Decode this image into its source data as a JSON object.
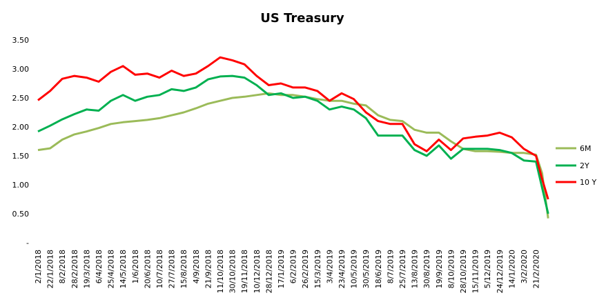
{
  "chart_data": {
    "type": "line",
    "title": "US Treasury",
    "xlabel": "",
    "ylabel": "",
    "ylim": [
      0,
      3.5
    ],
    "yticks": [
      "-",
      "0.50",
      "1.00",
      "1.50",
      "2.00",
      "2.50",
      "3.00",
      "3.50"
    ],
    "ytick_values": [
      0,
      0.5,
      1,
      1.5,
      2,
      2.5,
      3,
      3.5
    ],
    "grid": false,
    "legend_position": "right",
    "x_labels": [
      "2/1/2018",
      "22/1/2018",
      "8/2/2018",
      "28/2/2018",
      "19/3/2018",
      "6/4/2018",
      "25/4/2018",
      "14/5/2018",
      "1/6/2018",
      "20/6/2018",
      "10/7/2018",
      "27/7/2018",
      "15/8/2018",
      "4/9/2018",
      "21/9/2018",
      "11/10/2018",
      "30/10/2018",
      "19/11/2018",
      "10/12/2018",
      "28/12/2018",
      "17/1/2019",
      "6/2/2019",
      "26/2/2019",
      "15/3/2019",
      "3/4/2019",
      "23/4/2019",
      "10/5/2019",
      "30/5/2019",
      "18/6/2019",
      "8/7/2019",
      "25/7/2019",
      "13/8/2019",
      "30/8/2019",
      "19/9/2019",
      "8/10/2019",
      "28/10/2019",
      "15/11/2019",
      "5/12/2019",
      "24/12/2019",
      "14/1/2020",
      "3/2/2020",
      "21/2/2020"
    ],
    "x_index": [
      0,
      1,
      2,
      3,
      4,
      5,
      6,
      7,
      8,
      9,
      10,
      11,
      12,
      13,
      14,
      15,
      16,
      17,
      18,
      19,
      20,
      21,
      22,
      23,
      24,
      25,
      26,
      27,
      28,
      29,
      30,
      31,
      32,
      33,
      34,
      35,
      36,
      37,
      38,
      39,
      40,
      41,
      41.5,
      42
    ],
    "series": [
      {
        "name": "6M",
        "color": "#9BBB59",
        "values": [
          1.6,
          1.63,
          1.78,
          1.87,
          1.92,
          1.98,
          2.05,
          2.08,
          2.1,
          2.12,
          2.15,
          2.2,
          2.25,
          2.32,
          2.4,
          2.45,
          2.5,
          2.52,
          2.55,
          2.58,
          2.55,
          2.55,
          2.52,
          2.48,
          2.45,
          2.45,
          2.4,
          2.37,
          2.2,
          2.12,
          2.1,
          1.95,
          1.9,
          1.9,
          1.75,
          1.62,
          1.58,
          1.58,
          1.57,
          1.55,
          1.55,
          1.52,
          1.2,
          0.42
        ]
      },
      {
        "name": "2Y",
        "color": "#00B050",
        "values": [
          1.92,
          2.02,
          2.13,
          2.22,
          2.3,
          2.28,
          2.45,
          2.55,
          2.45,
          2.52,
          2.55,
          2.65,
          2.62,
          2.68,
          2.82,
          2.87,
          2.88,
          2.85,
          2.72,
          2.55,
          2.58,
          2.5,
          2.52,
          2.45,
          2.3,
          2.35,
          2.3,
          2.15,
          1.85,
          1.85,
          1.85,
          1.6,
          1.5,
          1.68,
          1.45,
          1.62,
          1.62,
          1.62,
          1.6,
          1.55,
          1.42,
          1.4,
          0.95,
          0.5
        ]
      },
      {
        "name": "10 Y",
        "color": "#FF0000",
        "values": [
          2.46,
          2.62,
          2.83,
          2.88,
          2.85,
          2.78,
          2.95,
          3.05,
          2.9,
          2.92,
          2.85,
          2.97,
          2.88,
          2.92,
          3.05,
          3.2,
          3.15,
          3.08,
          2.88,
          2.72,
          2.75,
          2.68,
          2.68,
          2.62,
          2.45,
          2.58,
          2.48,
          2.25,
          2.1,
          2.05,
          2.05,
          1.7,
          1.58,
          1.78,
          1.6,
          1.8,
          1.83,
          1.85,
          1.9,
          1.82,
          1.62,
          1.5,
          1.1,
          0.75
        ]
      }
    ]
  }
}
